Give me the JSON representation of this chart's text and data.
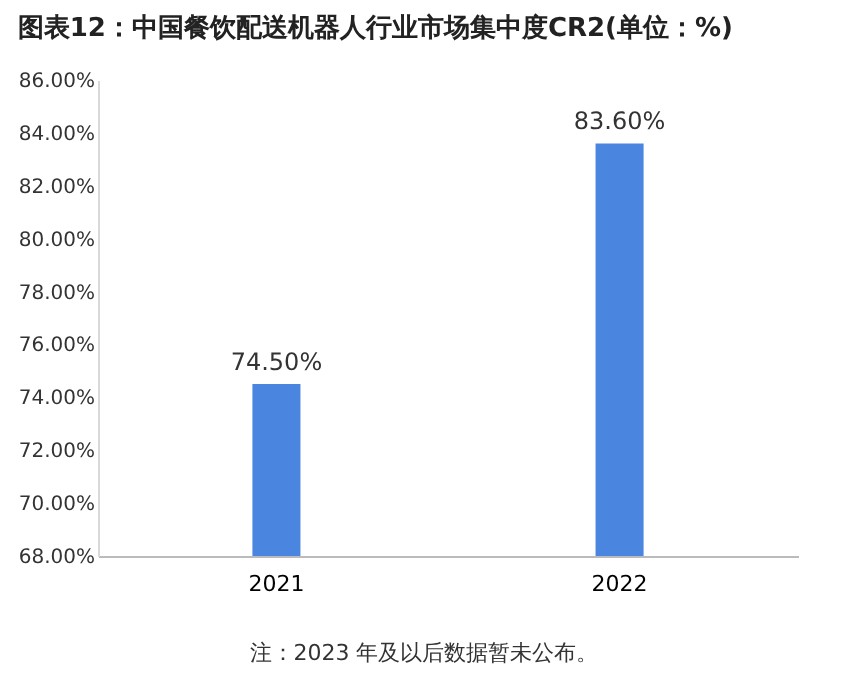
{
  "chart_data": {
    "type": "bar",
    "title": "图表12：中国餐饮配送机器人行业市场集中度CR2(单位：%)",
    "categories": [
      "2021",
      "2022"
    ],
    "values": [
      74.5,
      83.6
    ],
    "value_labels": [
      "74.50%",
      "83.60%"
    ],
    "color": "#4a86e0",
    "ylim": [
      68,
      86
    ],
    "yticks": [
      {
        "value": 68,
        "label": "68.00%"
      },
      {
        "value": 70,
        "label": "70.00%"
      },
      {
        "value": 72,
        "label": "72.00%"
      },
      {
        "value": 74,
        "label": "74.00%"
      },
      {
        "value": 76,
        "label": "76.00%"
      },
      {
        "value": 78,
        "label": "78.00%"
      },
      {
        "value": 80,
        "label": "80.00%"
      },
      {
        "value": 82,
        "label": "82.00%"
      },
      {
        "value": 84,
        "label": "84.00%"
      },
      {
        "value": 86,
        "label": "86.00%"
      }
    ],
    "grid": false,
    "annotations": [
      "注：2023 年及以后数据暂未公布。"
    ]
  }
}
